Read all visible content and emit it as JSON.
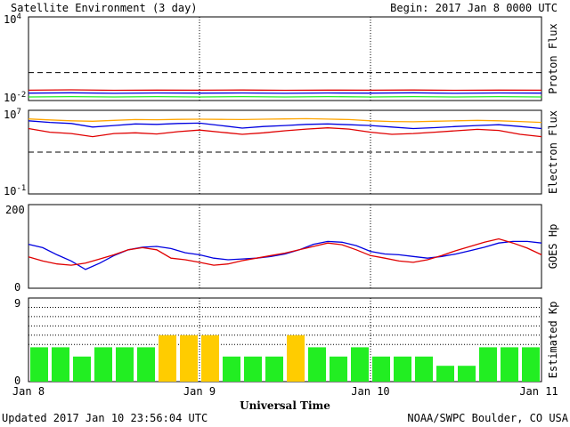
{
  "header": {
    "title": "Satellite Environment (3 day)",
    "begin": "Begin:  2017 Jan 8 0000 UTC"
  },
  "footer": {
    "updated": "Updated 2017 Jan 10 23:56:04 UTC",
    "credit": "NOAA/SWPC Boulder, CO USA"
  },
  "colors": {
    "red": "#e00000",
    "blue": "#0000e0",
    "green": "#22ee22",
    "orange": "#ffa500",
    "kp_green": "#22ee22",
    "kp_yellow": "#ffcc00"
  },
  "chart_data": [
    {
      "type": "line",
      "panel": "proton",
      "ylabel": "Proton Flux",
      "scale": "log",
      "ylim": [
        0.01,
        10000
      ],
      "ytick_labels": {
        "top": {
          "base": "10",
          "exp": "4"
        },
        "bottom": {
          "base": "10",
          "exp": "-2"
        }
      },
      "reference_level": 1,
      "xlim": [
        0,
        72
      ],
      "x": [
        0,
        6,
        12,
        18,
        24,
        30,
        36,
        42,
        48,
        54,
        60,
        66,
        72
      ],
      "series": [
        {
          "color": "red",
          "values": [
            0.055,
            0.058,
            0.054,
            0.056,
            0.055,
            0.057,
            0.054,
            0.056,
            0.055,
            0.057,
            0.054,
            0.056,
            0.055
          ]
        },
        {
          "color": "blue",
          "values": [
            0.034,
            0.036,
            0.033,
            0.035,
            0.034,
            0.035,
            0.033,
            0.035,
            0.034,
            0.036,
            0.033,
            0.035,
            0.034
          ]
        },
        {
          "color": "green",
          "values": [
            0.018,
            0.019,
            0.018,
            0.019,
            0.018,
            0.019,
            0.018,
            0.019,
            0.018,
            0.019,
            0.018,
            0.019,
            0.018
          ]
        }
      ]
    },
    {
      "type": "line",
      "panel": "electron",
      "ylabel": "Electron Flux",
      "scale": "log",
      "ylim": [
        0.1,
        10000000
      ],
      "ytick_labels": {
        "top": {
          "base": "10",
          "exp": "7"
        },
        "bottom": {
          "base": "10",
          "exp": "-1"
        }
      },
      "reference_level": 1000,
      "xlim": [
        0,
        72
      ],
      "x": [
        0,
        3,
        6,
        9,
        12,
        15,
        18,
        21,
        24,
        27,
        30,
        33,
        36,
        39,
        42,
        45,
        48,
        51,
        54,
        57,
        60,
        63,
        66,
        69,
        72
      ],
      "series": [
        {
          "color": "orange",
          "values": [
            1500000,
            1200000,
            1000000,
            900000,
            1100000,
            1300000,
            1250000,
            1350000,
            1400000,
            1350000,
            1300000,
            1400000,
            1500000,
            1600000,
            1450000,
            1300000,
            1000000,
            850000,
            800000,
            900000,
            1000000,
            1100000,
            1000000,
            850000,
            700000
          ]
        },
        {
          "color": "blue",
          "values": [
            1000000,
            700000,
            550000,
            250000,
            350000,
            500000,
            450000,
            550000,
            600000,
            350000,
            200000,
            280000,
            350000,
            450000,
            500000,
            420000,
            350000,
            250000,
            180000,
            220000,
            280000,
            350000,
            420000,
            280000,
            180000
          ]
        },
        {
          "color": "red",
          "values": [
            180000,
            80000,
            60000,
            30000,
            60000,
            70000,
            55000,
            90000,
            130000,
            80000,
            50000,
            70000,
            110000,
            160000,
            210000,
            160000,
            80000,
            50000,
            60000,
            80000,
            110000,
            150000,
            120000,
            50000,
            30000
          ]
        }
      ]
    },
    {
      "type": "line",
      "panel": "goes_hp",
      "ylabel": "GOES Hp",
      "scale": "linear",
      "ylim": [
        0,
        200
      ],
      "ytick_labels": {
        "top": "200",
        "bottom": "0"
      },
      "xlim": [
        0,
        72
      ],
      "x": [
        0,
        2,
        4,
        6,
        8,
        10,
        12,
        14,
        16,
        18,
        20,
        22,
        24,
        26,
        28,
        30,
        32,
        34,
        36,
        38,
        40,
        42,
        44,
        46,
        48,
        50,
        52,
        54,
        56,
        58,
        60,
        62,
        64,
        66,
        68,
        70,
        72
      ],
      "series": [
        {
          "color": "blue",
          "values": [
            105,
            97,
            80,
            65,
            45,
            60,
            78,
            92,
            98,
            100,
            95,
            85,
            80,
            72,
            68,
            70,
            72,
            76,
            82,
            92,
            105,
            112,
            110,
            102,
            88,
            82,
            80,
            76,
            72,
            76,
            82,
            90,
            98,
            108,
            112,
            112,
            108
          ]
        },
        {
          "color": "red",
          "values": [
            75,
            65,
            58,
            55,
            60,
            70,
            80,
            92,
            97,
            92,
            72,
            68,
            62,
            55,
            58,
            66,
            72,
            78,
            84,
            92,
            100,
            108,
            104,
            92,
            78,
            72,
            65,
            62,
            68,
            78,
            90,
            100,
            110,
            118,
            108,
            96,
            80
          ]
        }
      ]
    },
    {
      "type": "bar",
      "panel": "kp",
      "ylabel": "Estimated Kp",
      "ylim": [
        0,
        9
      ],
      "ytick_labels": {
        "top": "9",
        "bottom": "0"
      },
      "kp_levels": [
        4,
        5,
        6,
        7,
        8
      ],
      "interval_hours": 3,
      "values": [
        3.7,
        3.7,
        2.7,
        3.7,
        3.7,
        3.7,
        5,
        5,
        5,
        2.7,
        2.7,
        2.7,
        5,
        3.7,
        2.7,
        3.7,
        2.7,
        2.7,
        2.7,
        1.7,
        1.7,
        3.7,
        3.7,
        3.7
      ],
      "colors": [
        "kp_green",
        "kp_green",
        "kp_green",
        "kp_green",
        "kp_green",
        "kp_green",
        "kp_yellow",
        "kp_yellow",
        "kp_yellow",
        "kp_green",
        "kp_green",
        "kp_green",
        "kp_yellow",
        "kp_green",
        "kp_green",
        "kp_green",
        "kp_green",
        "kp_green",
        "kp_green",
        "kp_green",
        "kp_green",
        "kp_green",
        "kp_green",
        "kp_green"
      ]
    }
  ],
  "x_axis": {
    "label": "Universal Time",
    "ticks": [
      {
        "hour": 0,
        "label": "Jan 8"
      },
      {
        "hour": 24,
        "label": "Jan 9"
      },
      {
        "hour": 48,
        "label": "Jan 10"
      },
      {
        "hour": 72,
        "label": "Jan 11"
      }
    ]
  }
}
